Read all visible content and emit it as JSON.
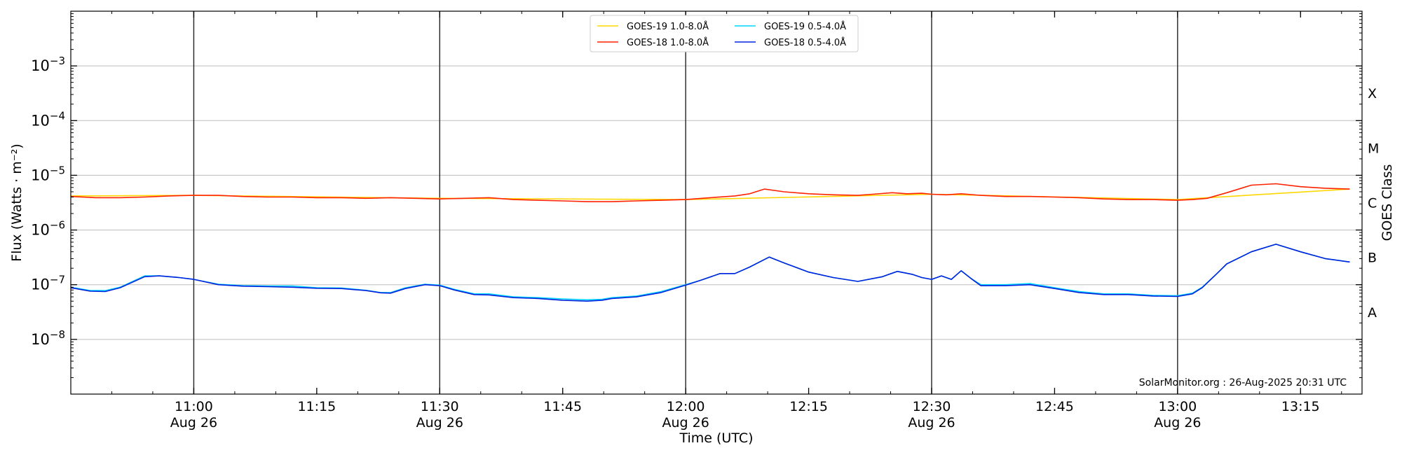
{
  "chart_data": {
    "type": "line",
    "title": "",
    "xlabel": "Time (UTC)",
    "ylabel": "Flux (Watts · m⁻²)",
    "right_ylabel": "GOES Class",
    "yscale": "log",
    "ylim": [
      1e-09,
      0.01
    ],
    "x_unit": "hours UTC on 26-Aug-2025",
    "xlim": [
      10.75,
      13.375
    ],
    "grid": "horizontal at decades",
    "legend_position": "top-center",
    "y_ticks": [
      {
        "value": 1e-08,
        "base": "10",
        "exp": "−8"
      },
      {
        "value": 1e-07,
        "base": "10",
        "exp": "−7"
      },
      {
        "value": 1e-06,
        "base": "10",
        "exp": "−6"
      },
      {
        "value": 1e-05,
        "base": "10",
        "exp": "−5"
      },
      {
        "value": 0.0001,
        "base": "10",
        "exp": "−4"
      },
      {
        "value": 0.001,
        "base": "10",
        "exp": "−3"
      }
    ],
    "x_ticks": [
      {
        "value": 11.0,
        "time": "11:00",
        "date": "Aug 26"
      },
      {
        "value": 11.25,
        "time": "11:15",
        "date": ""
      },
      {
        "value": 11.5,
        "time": "11:30",
        "date": "Aug 26"
      },
      {
        "value": 11.75,
        "time": "11:45",
        "date": ""
      },
      {
        "value": 12.0,
        "time": "12:00",
        "date": "Aug 26"
      },
      {
        "value": 12.25,
        "time": "12:15",
        "date": ""
      },
      {
        "value": 12.5,
        "time": "12:30",
        "date": "Aug 26"
      },
      {
        "value": 12.75,
        "time": "12:45",
        "date": ""
      },
      {
        "value": 13.0,
        "time": "13:00",
        "date": "Aug 26"
      },
      {
        "value": 13.25,
        "time": "13:15",
        "date": ""
      }
    ],
    "vertical_lines": [
      11.0,
      11.5,
      12.0,
      12.5,
      13.0
    ],
    "goes_classes": [
      {
        "label": "A",
        "value": 3.16e-08
      },
      {
        "label": "B",
        "value": 3.16e-07
      },
      {
        "label": "C",
        "value": 3.16e-06
      },
      {
        "label": "M",
        "value": 3.16e-05
      },
      {
        "label": "X",
        "value": 0.000316
      }
    ],
    "series": [
      {
        "name": "GOES-19 1.0-8.0Å",
        "color": "#FFD700",
        "x": [
          10.75,
          11.0,
          11.5,
          12.0,
          12.5,
          13.0,
          13.35
        ],
        "y": [
          4.2e-06,
          4.3e-06,
          3.8e-06,
          3.6e-06,
          4.5e-06,
          3.6e-06,
          5.6e-06
        ]
      },
      {
        "name": "GOES-19 0.5-4.0Å",
        "color": "#00D5FF",
        "x": [
          10.75,
          10.79,
          10.82,
          10.85,
          10.9,
          10.93,
          10.97,
          11.0,
          11.05,
          11.1,
          11.15,
          11.2,
          11.25,
          11.3,
          11.35,
          11.38,
          11.4,
          11.43,
          11.47,
          11.5,
          11.53,
          11.57,
          11.6,
          11.65,
          11.7,
          11.75,
          11.8,
          11.83,
          11.85,
          11.9,
          11.95,
          12.0,
          12.03,
          12.07,
          12.1,
          12.13,
          12.17,
          12.2,
          12.25,
          12.3,
          12.35,
          12.4,
          12.43,
          12.46,
          12.48,
          12.5,
          12.52,
          12.54,
          12.56,
          12.58,
          12.6,
          12.65,
          12.7,
          12.75,
          12.8,
          12.85,
          12.9,
          12.95,
          13.0,
          13.03,
          13.05,
          13.08,
          13.1,
          13.15,
          13.2,
          13.25,
          13.3,
          13.35
        ],
        "y": [
          9e-08,
          7.8e-08,
          7.8e-08,
          9e-08,
          1.45e-07,
          1.45e-07,
          1.35e-07,
          1.25e-07,
          1.02e-07,
          9.6e-08,
          9.5e-08,
          9.5e-08,
          8.8e-08,
          8.7e-08,
          7.9e-08,
          7.2e-08,
          7.2e-08,
          8.8e-08,
          1.02e-07,
          9.8e-08,
          8.2e-08,
          6.8e-08,
          6.8e-08,
          6e-08,
          5.8e-08,
          5.5e-08,
          5.3e-08,
          5.4e-08,
          5.8e-08,
          6.2e-08,
          7.5e-08,
          1e-07,
          1.2e-07,
          1.6e-07,
          1.6e-07,
          2.1e-07,
          3.2e-07,
          2.5e-07,
          1.7e-07,
          1.35e-07,
          1.15e-07,
          1.4e-07,
          1.75e-07,
          1.55e-07,
          1.35e-07,
          1.25e-07,
          1.45e-07,
          1.25e-07,
          1.8e-07,
          1.3e-07,
          1e-07,
          1e-07,
          1.05e-07,
          8.8e-08,
          7.5e-08,
          6.8e-08,
          6.8e-08,
          6.4e-08,
          6.3e-08,
          7e-08,
          9e-08,
          1.6e-07,
          2.4e-07,
          4e-07,
          5.5e-07,
          4e-07,
          3e-07,
          2.6e-07
        ]
      },
      {
        "name": "GOES-18 1.0-8.0Å",
        "color": "#FF2200",
        "x": [
          10.75,
          10.8,
          10.85,
          10.9,
          10.95,
          11.0,
          11.05,
          11.1,
          11.15,
          11.2,
          11.25,
          11.3,
          11.35,
          11.4,
          11.45,
          11.5,
          11.55,
          11.6,
          11.65,
          11.7,
          11.75,
          11.8,
          11.85,
          11.9,
          11.95,
          12.0,
          12.05,
          12.1,
          12.13,
          12.16,
          12.2,
          12.25,
          12.3,
          12.35,
          12.38,
          12.42,
          12.45,
          12.48,
          12.5,
          12.53,
          12.56,
          12.6,
          12.65,
          12.7,
          12.75,
          12.8,
          12.85,
          12.9,
          12.95,
          13.0,
          13.03,
          13.06,
          13.1,
          13.15,
          13.2,
          13.25,
          13.3,
          13.35
        ],
        "y": [
          4.1e-06,
          3.9e-06,
          3.9e-06,
          4e-06,
          4.2e-06,
          4.3e-06,
          4.3e-06,
          4.1e-06,
          4e-06,
          4e-06,
          3.9e-06,
          3.9e-06,
          3.8e-06,
          3.9e-06,
          3.8e-06,
          3.7e-06,
          3.8e-06,
          3.9e-06,
          3.6e-06,
          3.5e-06,
          3.4e-06,
          3.3e-06,
          3.3e-06,
          3.4e-06,
          3.5e-06,
          3.6e-06,
          3.9e-06,
          4.2e-06,
          4.6e-06,
          5.6e-06,
          5e-06,
          4.6e-06,
          4.4e-06,
          4.3e-06,
          4.5e-06,
          4.8e-06,
          4.6e-06,
          4.7e-06,
          4.5e-06,
          4.4e-06,
          4.6e-06,
          4.3e-06,
          4.1e-06,
          4.1e-06,
          4e-06,
          3.9e-06,
          3.7e-06,
          3.6e-06,
          3.6e-06,
          3.5e-06,
          3.6e-06,
          3.8e-06,
          4.8e-06,
          6.6e-06,
          7e-06,
          6.2e-06,
          5.8e-06,
          5.6e-06
        ]
      },
      {
        "name": "GOES-18 0.5-4.0Å",
        "color": "#0022DD",
        "x": [
          10.75,
          10.79,
          10.82,
          10.85,
          10.9,
          10.93,
          10.97,
          11.0,
          11.05,
          11.1,
          11.15,
          11.2,
          11.25,
          11.3,
          11.35,
          11.38,
          11.4,
          11.43,
          11.47,
          11.5,
          11.53,
          11.57,
          11.6,
          11.65,
          11.7,
          11.75,
          11.8,
          11.83,
          11.85,
          11.9,
          11.95,
          12.0,
          12.03,
          12.07,
          12.1,
          12.13,
          12.17,
          12.2,
          12.25,
          12.3,
          12.35,
          12.4,
          12.43,
          12.46,
          12.48,
          12.5,
          12.52,
          12.54,
          12.56,
          12.58,
          12.6,
          12.65,
          12.7,
          12.75,
          12.8,
          12.85,
          12.9,
          12.95,
          13.0,
          13.03,
          13.05,
          13.08,
          13.1,
          13.15,
          13.2,
          13.25,
          13.3,
          13.35
        ],
        "y": [
          8.8e-08,
          7.6e-08,
          7.5e-08,
          8.8e-08,
          1.4e-07,
          1.45e-07,
          1.35e-07,
          1.25e-07,
          1e-07,
          9.4e-08,
          9.2e-08,
          9e-08,
          8.6e-08,
          8.5e-08,
          7.8e-08,
          7.1e-08,
          7e-08,
          8.5e-08,
          1e-07,
          9.6e-08,
          8e-08,
          6.6e-08,
          6.5e-08,
          5.8e-08,
          5.6e-08,
          5.2e-08,
          5e-08,
          5.2e-08,
          5.6e-08,
          6e-08,
          7.2e-08,
          9.8e-08,
          1.2e-07,
          1.6e-07,
          1.6e-07,
          2.1e-07,
          3.2e-07,
          2.5e-07,
          1.7e-07,
          1.35e-07,
          1.15e-07,
          1.4e-07,
          1.75e-07,
          1.55e-07,
          1.35e-07,
          1.25e-07,
          1.45e-07,
          1.25e-07,
          1.8e-07,
          1.3e-07,
          9.6e-08,
          9.6e-08,
          1e-07,
          8.5e-08,
          7.2e-08,
          6.6e-08,
          6.6e-08,
          6.2e-08,
          6.1e-08,
          6.8e-08,
          8.8e-08,
          1.6e-07,
          2.4e-07,
          4e-07,
          5.5e-07,
          4e-07,
          3e-07,
          2.6e-07
        ]
      }
    ],
    "legend_order": [
      0,
      1,
      2,
      3
    ],
    "annotation": "SolarMonitor.org : 26-Aug-2025 20:31 UTC"
  }
}
